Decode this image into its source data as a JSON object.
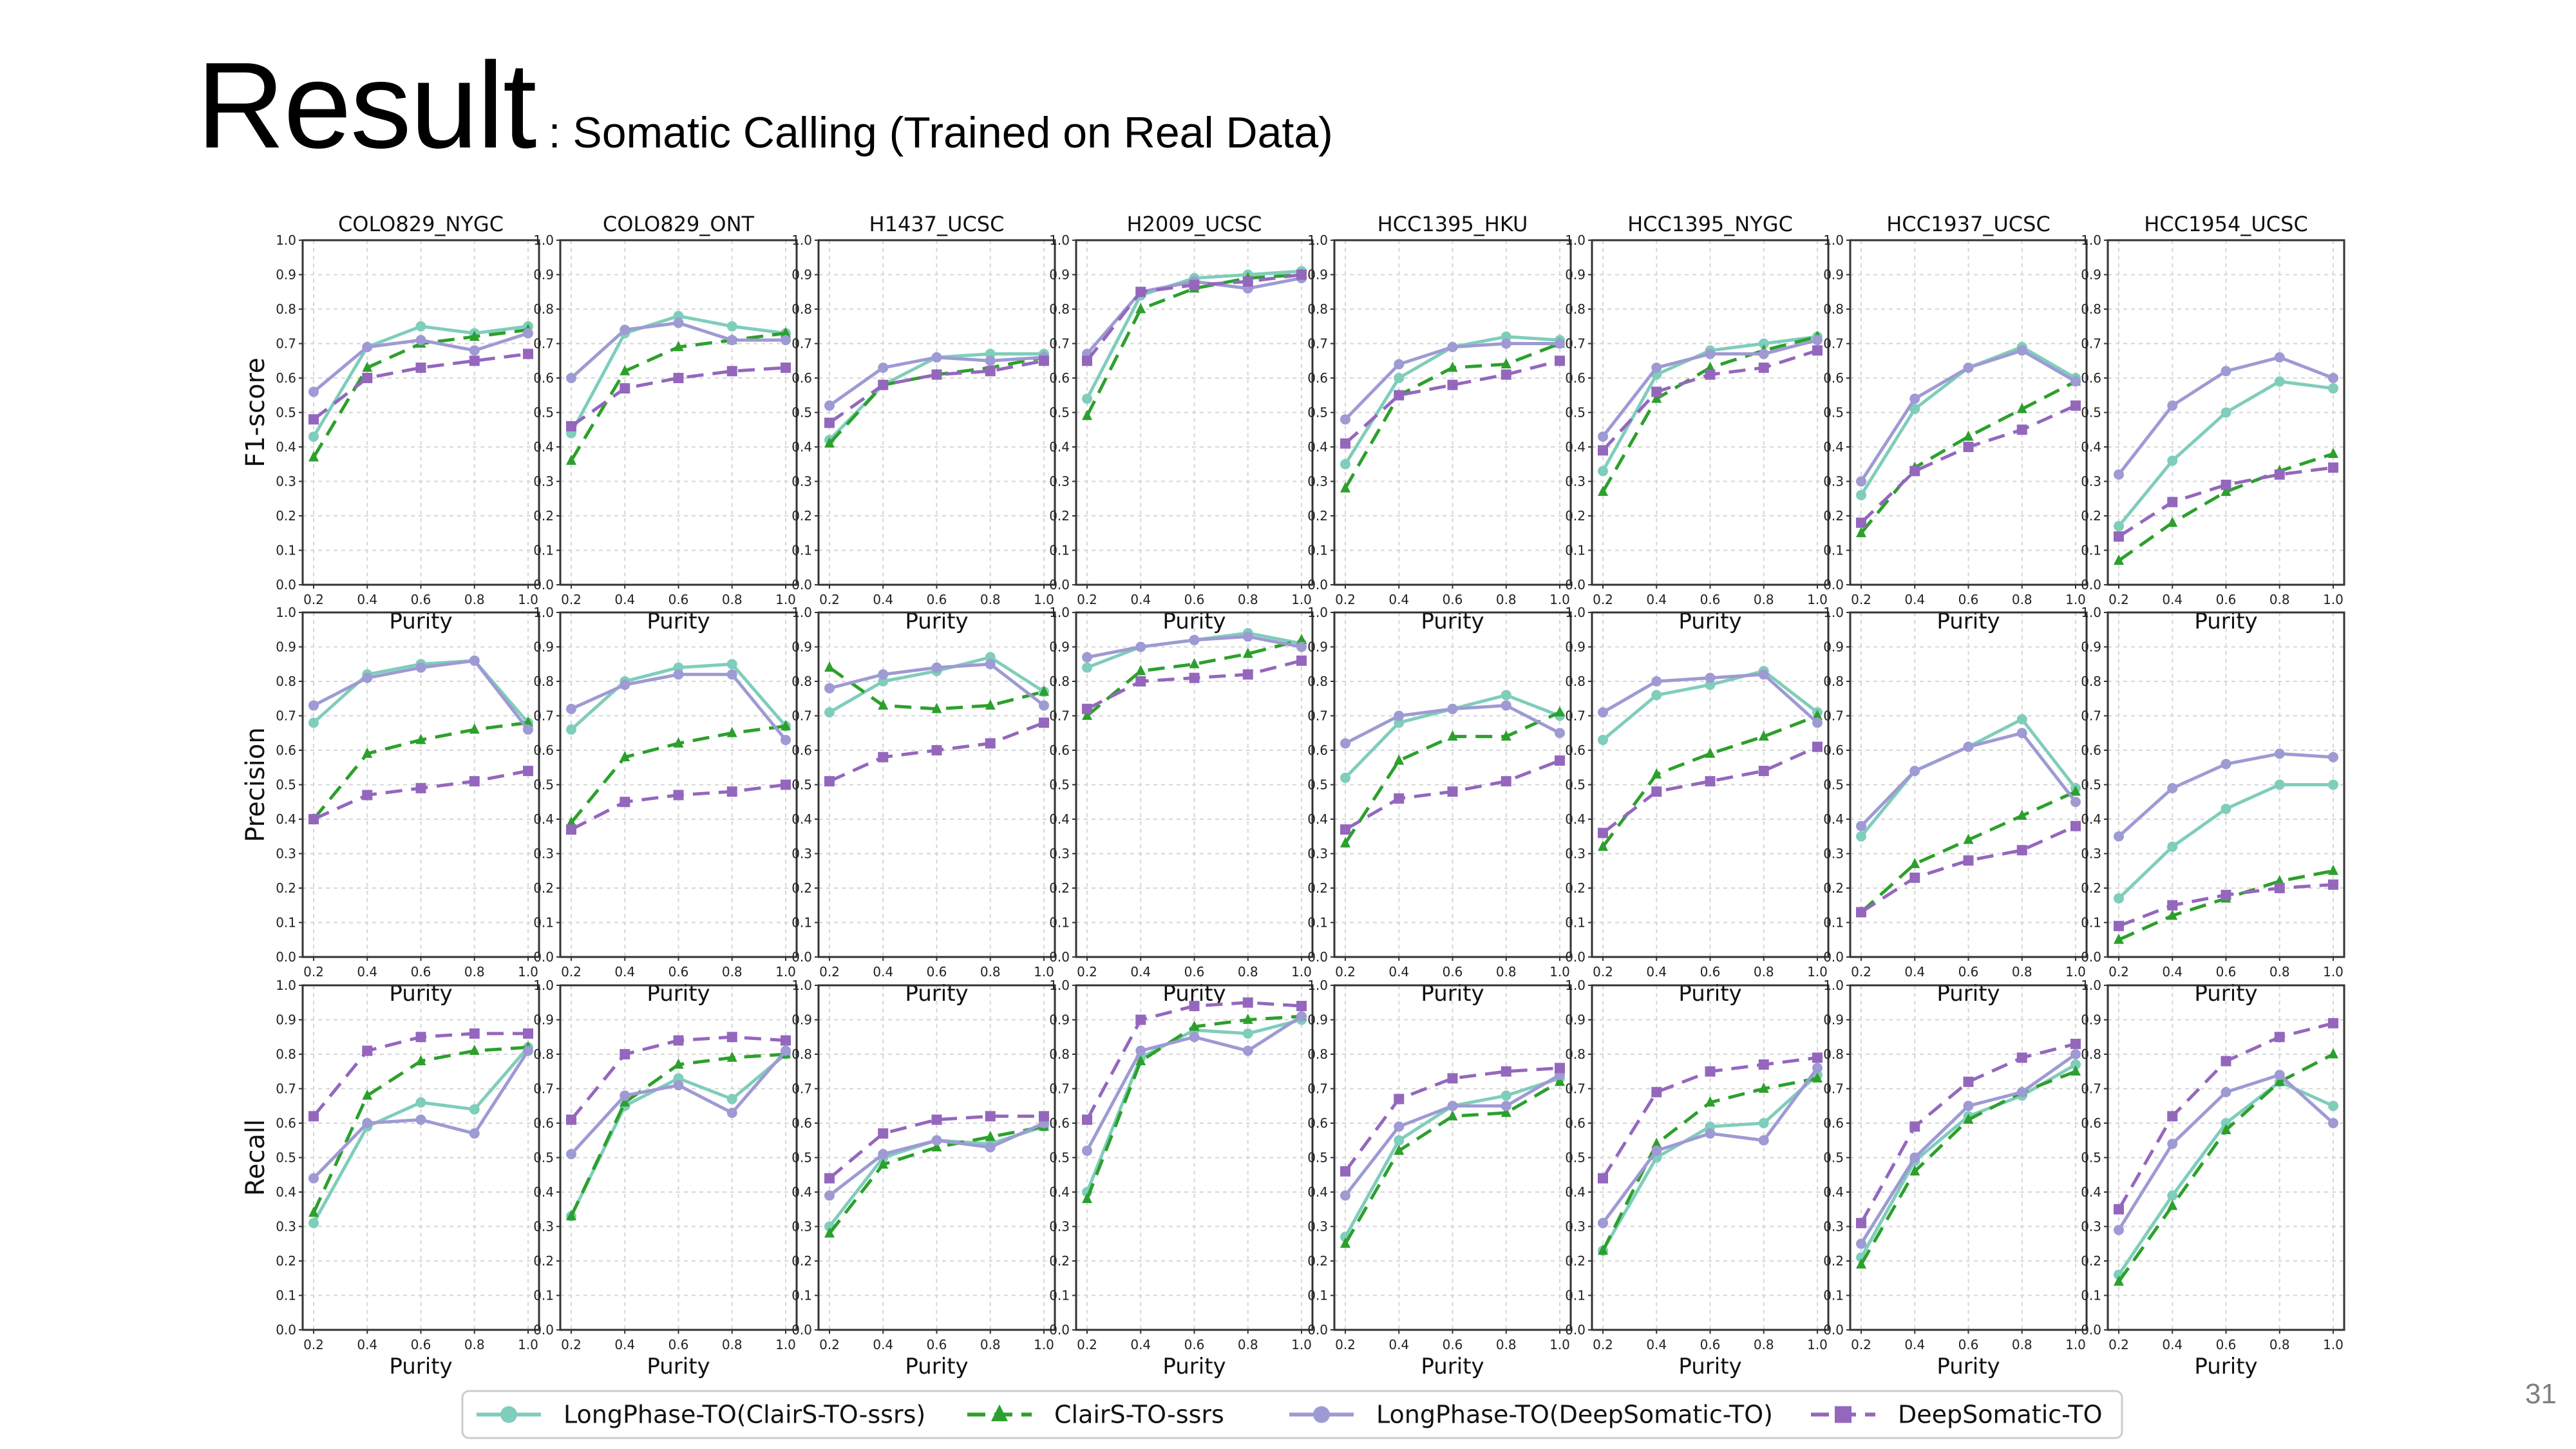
{
  "slide": {
    "title": "Result",
    "subtitle": ": Somatic Calling (Trained on Real Data)",
    "page_number": "31"
  },
  "colors": {
    "LongPhase-TO(ClairS-TO-ssrs)": "#7fcdbb",
    "ClairS-TO-ssrs": "#2ca02c",
    "LongPhase-TO(DeepSomatic-TO)": "#9e9ad3",
    "DeepSomatic-TO": "#9467bd"
  },
  "chart_data": {
    "type": "line",
    "layout": "small-multiples grid (3 rows x 8 columns)",
    "columns": [
      "COLO829_NYGC",
      "COLO829_ONT",
      "H1437_UCSC",
      "H2009_UCSC",
      "HCC1395_HKU",
      "HCC1395_NYGC",
      "HCC1937_UCSC",
      "HCC1954_UCSC"
    ],
    "metrics": [
      "F1-score",
      "Precision",
      "Recall"
    ],
    "xlabel": "Purity",
    "x": [
      0.2,
      0.4,
      0.6,
      0.8,
      1.0
    ],
    "x_ticks": [
      "0.2",
      "0.4",
      "0.6",
      "0.8",
      "1.0"
    ],
    "ylim": [
      0.0,
      1.0
    ],
    "y_ticks": [
      "0.0",
      "0.1",
      "0.2",
      "0.3",
      "0.4",
      "0.5",
      "0.6",
      "0.7",
      "0.8",
      "0.9",
      "1.0"
    ],
    "grid": true,
    "legend_position": "bottom",
    "legend": [
      {
        "name": "LongPhase-TO(ClairS-TO-ssrs)",
        "style": "solid",
        "marker": "circle"
      },
      {
        "name": "ClairS-TO-ssrs",
        "style": "dashed",
        "marker": "triangle"
      },
      {
        "name": "LongPhase-TO(DeepSomatic-TO)",
        "style": "solid",
        "marker": "circle"
      },
      {
        "name": "DeepSomatic-TO",
        "style": "dashed",
        "marker": "square"
      }
    ],
    "series_order": [
      "LongPhase-TO(ClairS-TO-ssrs)",
      "ClairS-TO-ssrs",
      "LongPhase-TO(DeepSomatic-TO)",
      "DeepSomatic-TO"
    ],
    "values": {
      "F1-score": {
        "COLO829_NYGC": [
          [
            0.43,
            0.69,
            0.75,
            0.73,
            0.75
          ],
          [
            0.37,
            0.63,
            0.7,
            0.72,
            0.74
          ],
          [
            0.56,
            0.69,
            0.71,
            0.68,
            0.73
          ],
          [
            0.48,
            0.6,
            0.63,
            0.65,
            0.67
          ]
        ],
        "COLO829_ONT": [
          [
            0.44,
            0.73,
            0.78,
            0.75,
            0.73
          ],
          [
            0.36,
            0.62,
            0.69,
            0.71,
            0.73
          ],
          [
            0.6,
            0.74,
            0.76,
            0.71,
            0.71
          ],
          [
            0.46,
            0.57,
            0.6,
            0.62,
            0.63
          ]
        ],
        "H1437_UCSC": [
          [
            0.42,
            0.58,
            0.66,
            0.67,
            0.67
          ],
          [
            0.41,
            0.58,
            0.61,
            0.63,
            0.66
          ],
          [
            0.52,
            0.63,
            0.66,
            0.65,
            0.66
          ],
          [
            0.47,
            0.58,
            0.61,
            0.62,
            0.65
          ]
        ],
        "H2009_UCSC": [
          [
            0.54,
            0.84,
            0.89,
            0.9,
            0.91
          ],
          [
            0.49,
            0.8,
            0.86,
            0.89,
            0.9
          ],
          [
            0.67,
            0.85,
            0.88,
            0.86,
            0.89
          ],
          [
            0.65,
            0.85,
            0.87,
            0.88,
            0.9
          ]
        ],
        "HCC1395_HKU": [
          [
            0.35,
            0.6,
            0.69,
            0.72,
            0.71
          ],
          [
            0.28,
            0.55,
            0.63,
            0.64,
            0.7
          ],
          [
            0.48,
            0.64,
            0.69,
            0.7,
            0.7
          ],
          [
            0.41,
            0.55,
            0.58,
            0.61,
            0.65
          ]
        ],
        "HCC1395_NYGC": [
          [
            0.33,
            0.61,
            0.68,
            0.7,
            0.72
          ],
          [
            0.27,
            0.54,
            0.63,
            0.68,
            0.72
          ],
          [
            0.43,
            0.63,
            0.67,
            0.67,
            0.71
          ],
          [
            0.39,
            0.56,
            0.61,
            0.63,
            0.68
          ]
        ],
        "HCC1937_UCSC": [
          [
            0.26,
            0.51,
            0.63,
            0.69,
            0.6
          ],
          [
            0.15,
            0.34,
            0.43,
            0.51,
            0.59
          ],
          [
            0.3,
            0.54,
            0.63,
            0.68,
            0.59
          ],
          [
            0.18,
            0.33,
            0.4,
            0.45,
            0.52
          ]
        ],
        "HCC1954_UCSC": [
          [
            0.17,
            0.36,
            0.5,
            0.59,
            0.57
          ],
          [
            0.07,
            0.18,
            0.27,
            0.33,
            0.38
          ],
          [
            0.32,
            0.52,
            0.62,
            0.66,
            0.6
          ],
          [
            0.14,
            0.24,
            0.29,
            0.32,
            0.34
          ]
        ]
      },
      "Precision": {
        "COLO829_NYGC": [
          [
            0.68,
            0.82,
            0.85,
            0.86,
            0.68
          ],
          [
            0.4,
            0.59,
            0.63,
            0.66,
            0.68
          ],
          [
            0.73,
            0.81,
            0.84,
            0.86,
            0.66
          ],
          [
            0.4,
            0.47,
            0.49,
            0.51,
            0.54
          ]
        ],
        "COLO829_ONT": [
          [
            0.66,
            0.8,
            0.84,
            0.85,
            0.67
          ],
          [
            0.39,
            0.58,
            0.62,
            0.65,
            0.67
          ],
          [
            0.72,
            0.79,
            0.82,
            0.82,
            0.63
          ],
          [
            0.37,
            0.45,
            0.47,
            0.48,
            0.5
          ]
        ],
        "H1437_UCSC": [
          [
            0.71,
            0.8,
            0.83,
            0.87,
            0.77
          ],
          [
            0.84,
            0.73,
            0.72,
            0.73,
            0.77
          ],
          [
            0.78,
            0.82,
            0.84,
            0.85,
            0.73
          ],
          [
            0.51,
            0.58,
            0.6,
            0.62,
            0.68
          ]
        ],
        "H2009_UCSC": [
          [
            0.84,
            0.9,
            0.92,
            0.94,
            0.91
          ],
          [
            0.7,
            0.83,
            0.85,
            0.88,
            0.92
          ],
          [
            0.87,
            0.9,
            0.92,
            0.93,
            0.9
          ],
          [
            0.72,
            0.8,
            0.81,
            0.82,
            0.86
          ]
        ],
        "HCC1395_HKU": [
          [
            0.52,
            0.68,
            0.72,
            0.76,
            0.7
          ],
          [
            0.33,
            0.57,
            0.64,
            0.64,
            0.71
          ],
          [
            0.62,
            0.7,
            0.72,
            0.73,
            0.65
          ],
          [
            0.37,
            0.46,
            0.48,
            0.51,
            0.57
          ]
        ],
        "HCC1395_NYGC": [
          [
            0.63,
            0.76,
            0.79,
            0.83,
            0.71
          ],
          [
            0.32,
            0.53,
            0.59,
            0.64,
            0.7
          ],
          [
            0.71,
            0.8,
            0.81,
            0.82,
            0.68
          ],
          [
            0.36,
            0.48,
            0.51,
            0.54,
            0.61
          ]
        ],
        "HCC1937_UCSC": [
          [
            0.35,
            0.54,
            0.61,
            0.69,
            0.49
          ],
          [
            0.13,
            0.27,
            0.34,
            0.41,
            0.48
          ],
          [
            0.38,
            0.54,
            0.61,
            0.65,
            0.45
          ],
          [
            0.13,
            0.23,
            0.28,
            0.31,
            0.38
          ]
        ],
        "HCC1954_UCSC": [
          [
            0.17,
            0.32,
            0.43,
            0.5,
            0.5
          ],
          [
            0.05,
            0.12,
            0.17,
            0.22,
            0.25
          ],
          [
            0.35,
            0.49,
            0.56,
            0.59,
            0.58
          ],
          [
            0.09,
            0.15,
            0.18,
            0.2,
            0.21
          ]
        ]
      },
      "Recall": {
        "COLO829_NYGC": [
          [
            0.31,
            0.59,
            0.66,
            0.64,
            0.82
          ],
          [
            0.34,
            0.68,
            0.78,
            0.81,
            0.82
          ],
          [
            0.44,
            0.6,
            0.61,
            0.57,
            0.81
          ],
          [
            0.62,
            0.81,
            0.85,
            0.86,
            0.86
          ]
        ],
        "COLO829_ONT": [
          [
            0.33,
            0.65,
            0.73,
            0.67,
            0.8
          ],
          [
            0.33,
            0.66,
            0.77,
            0.79,
            0.8
          ],
          [
            0.51,
            0.68,
            0.71,
            0.63,
            0.81
          ],
          [
            0.61,
            0.8,
            0.84,
            0.85,
            0.84
          ]
        ],
        "H1437_UCSC": [
          [
            0.3,
            0.5,
            0.55,
            0.54,
            0.59
          ],
          [
            0.28,
            0.48,
            0.53,
            0.56,
            0.59
          ],
          [
            0.39,
            0.51,
            0.55,
            0.53,
            0.6
          ],
          [
            0.44,
            0.57,
            0.61,
            0.62,
            0.62
          ]
        ],
        "H2009_UCSC": [
          [
            0.4,
            0.79,
            0.87,
            0.86,
            0.9
          ],
          [
            0.38,
            0.78,
            0.88,
            0.9,
            0.91
          ],
          [
            0.52,
            0.81,
            0.85,
            0.81,
            0.91
          ],
          [
            0.61,
            0.9,
            0.94,
            0.95,
            0.94
          ]
        ],
        "HCC1395_HKU": [
          [
            0.27,
            0.55,
            0.65,
            0.68,
            0.73
          ],
          [
            0.25,
            0.52,
            0.62,
            0.63,
            0.72
          ],
          [
            0.39,
            0.59,
            0.65,
            0.65,
            0.74
          ],
          [
            0.46,
            0.67,
            0.73,
            0.75,
            0.76
          ]
        ],
        "HCC1395_NYGC": [
          [
            0.23,
            0.5,
            0.59,
            0.6,
            0.74
          ],
          [
            0.23,
            0.54,
            0.66,
            0.7,
            0.73
          ],
          [
            0.31,
            0.52,
            0.57,
            0.55,
            0.76
          ],
          [
            0.44,
            0.69,
            0.75,
            0.77,
            0.79
          ]
        ],
        "HCC1937_UCSC": [
          [
            0.21,
            0.49,
            0.62,
            0.68,
            0.77
          ],
          [
            0.19,
            0.46,
            0.61,
            0.69,
            0.75
          ],
          [
            0.25,
            0.5,
            0.65,
            0.69,
            0.8
          ],
          [
            0.31,
            0.59,
            0.72,
            0.79,
            0.83
          ]
        ],
        "HCC1954_UCSC": [
          [
            0.16,
            0.39,
            0.6,
            0.72,
            0.65
          ],
          [
            0.14,
            0.36,
            0.58,
            0.72,
            0.8
          ],
          [
            0.29,
            0.54,
            0.69,
            0.74,
            0.6
          ],
          [
            0.35,
            0.62,
            0.78,
            0.85,
            0.89
          ]
        ]
      }
    }
  }
}
